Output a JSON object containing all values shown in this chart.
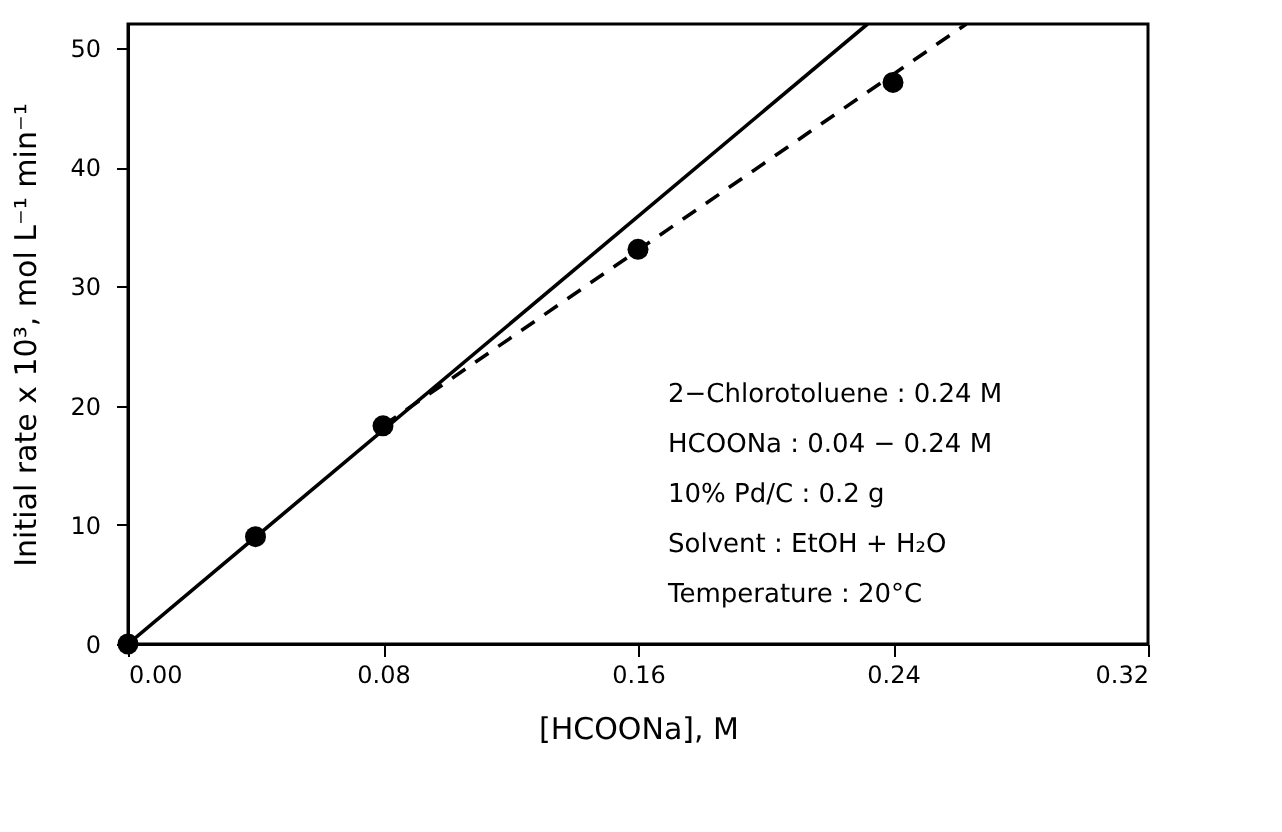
{
  "chart_data": {
    "type": "scatter",
    "xlabel": "[HCOONa], M",
    "ylabel": "Initial rate x 10³, mol L⁻¹ min⁻¹",
    "xlim": [
      0,
      0.32
    ],
    "ylim": [
      0,
      52
    ],
    "xticks": [
      {
        "value": 0,
        "label": "0.00"
      },
      {
        "value": 0.08,
        "label": "0.08"
      },
      {
        "value": 0.16,
        "label": "0.16"
      },
      {
        "value": 0.24,
        "label": "0.24"
      },
      {
        "value": 0.32,
        "label": "0.32"
      }
    ],
    "yticks": [
      0,
      10,
      20,
      30,
      40,
      50
    ],
    "grid": false,
    "legend": false,
    "series": [
      {
        "color": "#000000",
        "marker": "circle",
        "x": [
          0,
          0.04,
          0.08,
          0.16,
          0.24
        ],
        "values": [
          0,
          9,
          18.3,
          33.1,
          47.1
        ]
      },
      {
        "type": "line",
        "color": "#000000",
        "line_style": "solid",
        "marker": "none",
        "x": [
          0,
          0.232
        ],
        "values": [
          0,
          52
        ]
      },
      {
        "type": "line",
        "color": "#000000",
        "line_style": "dashed",
        "marker": "none",
        "x": [
          0.08,
          0.263
        ],
        "values": [
          18.3,
          52
        ]
      }
    ],
    "annotations": [
      "2−Chlorotoluene : 0.24 M",
      "HCOONa : 0.04 − 0.24 M",
      "10% Pd/C : 0.2 g",
      "Solvent : EtOH + H₂O",
      "Temperature : 20°C"
    ]
  }
}
